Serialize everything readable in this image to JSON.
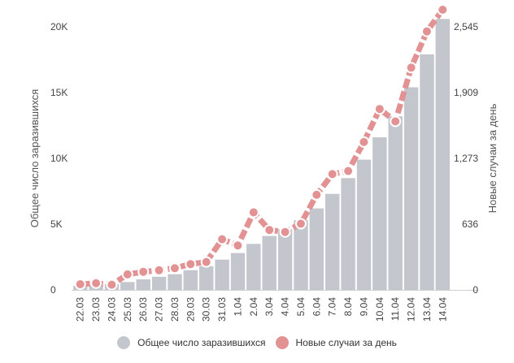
{
  "chart_data": {
    "type": "bar+line",
    "categories": [
      "22.03",
      "23.03",
      "24.03",
      "25.03",
      "26.03",
      "27.03",
      "28.03",
      "29.03",
      "30.03",
      "31.03",
      "1.04",
      "2.04",
      "3.04",
      "4.04",
      "5.04",
      "6.04",
      "7.04",
      "8.04",
      "9.04",
      "10.04",
      "11.04",
      "12.04",
      "13.04",
      "14.04"
    ],
    "series": [
      {
        "name": "Общее число заразившихся",
        "type": "bar",
        "axis": "left",
        "color": "#c3c6cd",
        "values": [
          300,
          370,
          440,
          600,
          800,
          1000,
          1200,
          1500,
          1800,
          2300,
          2800,
          3500,
          4100,
          4600,
          5300,
          6200,
          7300,
          8500,
          9900,
          11600,
          13200,
          15400,
          17900,
          20600
        ]
      },
      {
        "name": "Новые случаи за день",
        "type": "line",
        "axis": "right",
        "color": "#e39294",
        "values": [
          55,
          65,
          50,
          150,
          175,
          190,
          210,
          250,
          270,
          490,
          430,
          750,
          580,
          560,
          640,
          920,
          1120,
          1150,
          1430,
          1750,
          1630,
          2150,
          2500,
          2710
        ]
      }
    ],
    "left_axis": {
      "label": "Общее число заразившихся",
      "ticks": [
        "0",
        "5K",
        "10K",
        "15K",
        "20K"
      ],
      "tick_values": [
        0,
        5000,
        10000,
        15000,
        20000
      ],
      "range": [
        0,
        20400
      ]
    },
    "right_axis": {
      "label": "Новые случаи за день",
      "ticks": [
        "0",
        "636",
        "1,273",
        "1,909",
        "2,545"
      ],
      "tick_values": [
        0,
        636,
        1273,
        1909,
        2545
      ],
      "range": [
        0,
        2596
      ]
    },
    "xlabel": "",
    "grid": false,
    "legend_position": "bottom"
  },
  "legend": {
    "items": [
      {
        "label": "Общее число заразившихся",
        "color": "#c3c6cd"
      },
      {
        "label": "Новые случаи за день",
        "color": "#e39294"
      }
    ]
  }
}
